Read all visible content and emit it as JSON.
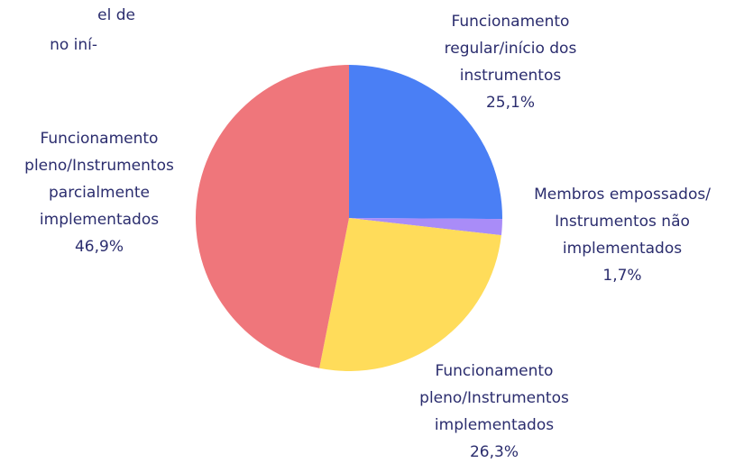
{
  "paragraph_lines": [
    "el  de",
    "no iní-"
  ],
  "chart_data": {
    "type": "pie",
    "categories": [
      [
        "Funcionamento",
        "regular/início dos",
        "instrumentos"
      ],
      [
        "Membros empossados/",
        "Instrumentos não",
        "implementados"
      ],
      [
        "Funcionamento",
        "pleno/Instrumentos",
        "implementados"
      ],
      [
        "Funcionamento",
        "pleno/Instrumentos",
        "parcialmente",
        "implementados"
      ]
    ],
    "values": [
      25.1,
      1.7,
      26.3,
      46.9
    ],
    "value_labels": [
      "25,1%",
      "1,7%",
      "26,3%",
      "46,9%"
    ],
    "colors": [
      "#4a7ff5",
      "#a98cf8",
      "#ffdc5a",
      "#ef767b"
    ]
  }
}
